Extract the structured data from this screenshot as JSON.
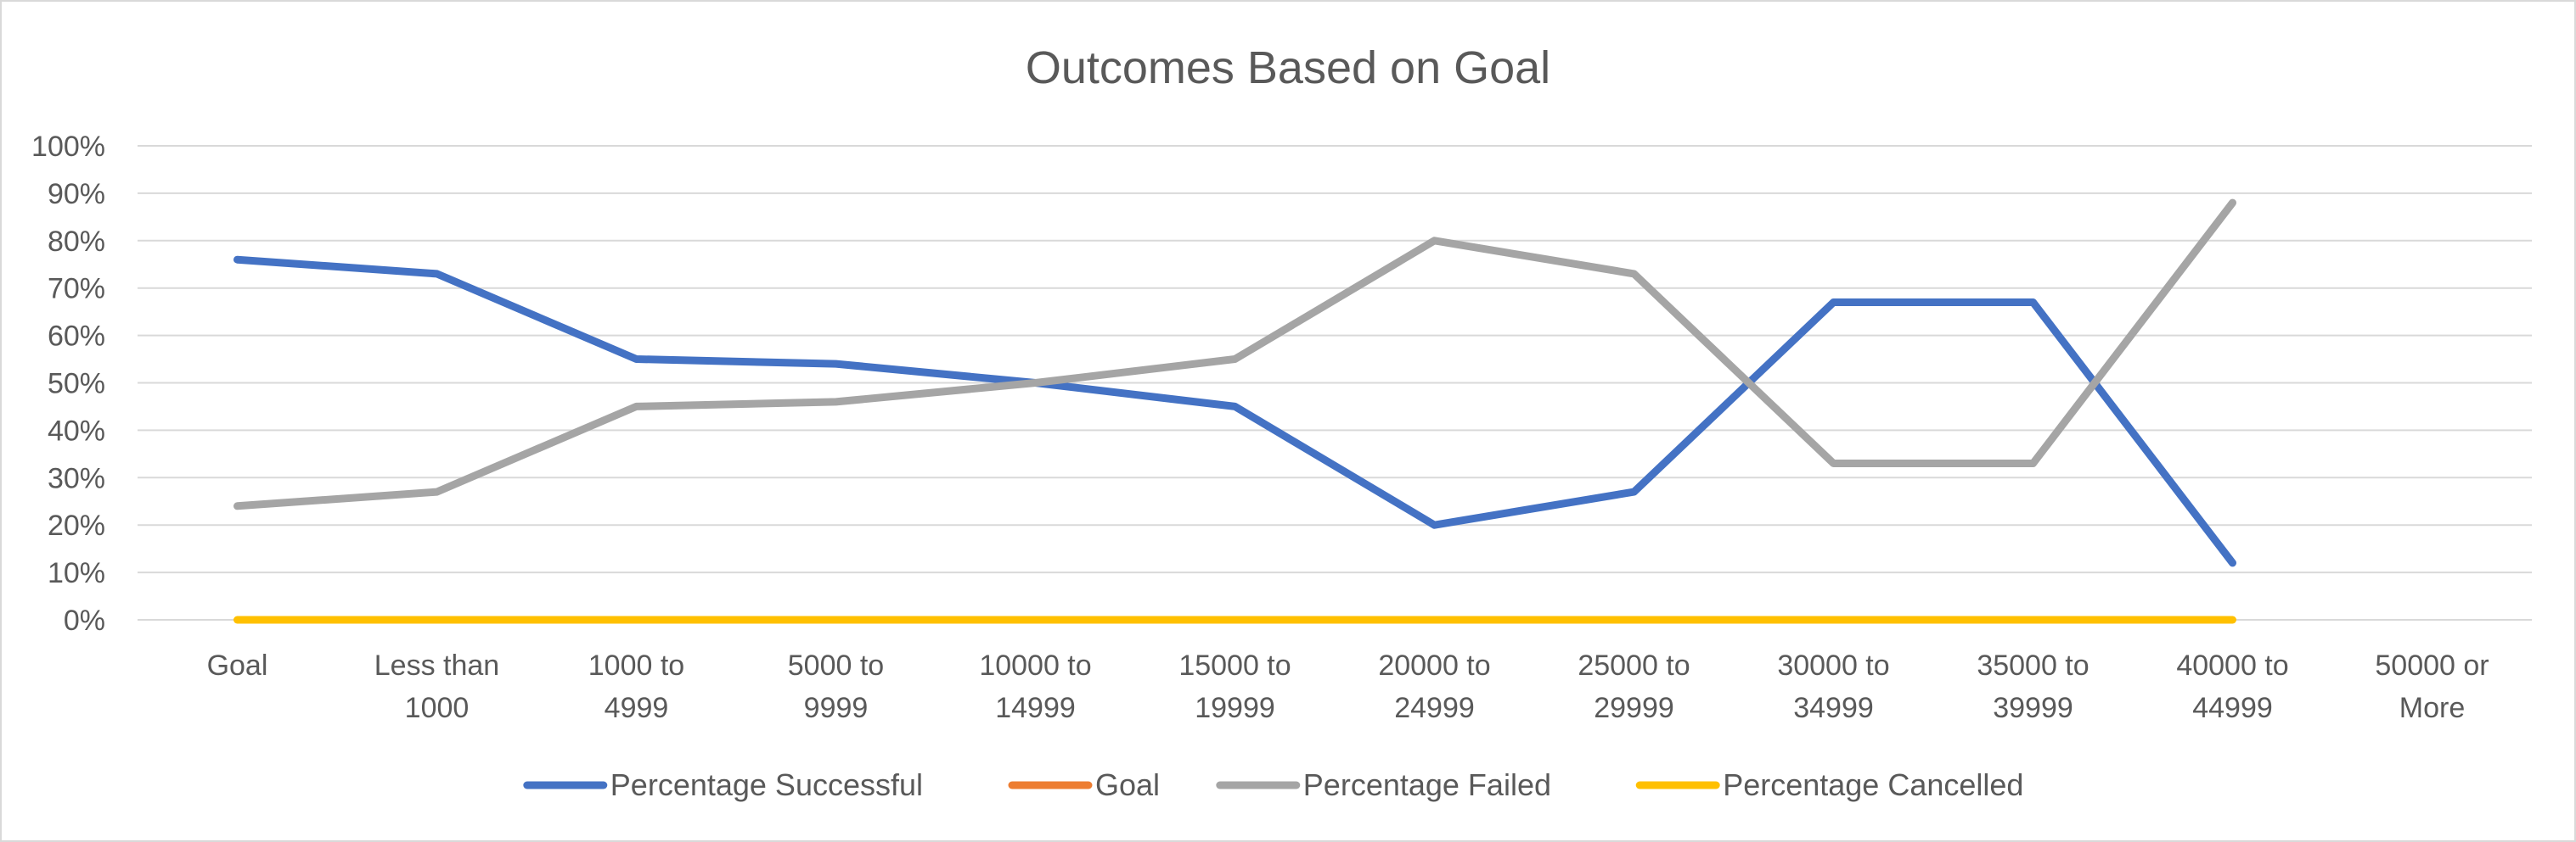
{
  "chart_data": {
    "type": "line",
    "title": "Outcomes Based on Goal",
    "categories": [
      [
        "Goal"
      ],
      [
        "Less than",
        "1000"
      ],
      [
        "1000 to",
        "4999"
      ],
      [
        "5000 to",
        "9999"
      ],
      [
        "10000 to",
        "14999"
      ],
      [
        "15000 to",
        "19999"
      ],
      [
        "20000 to",
        "24999"
      ],
      [
        "25000 to",
        "29999"
      ],
      [
        "30000 to",
        "34999"
      ],
      [
        "35000 to",
        "39999"
      ],
      [
        "40000 to",
        "44999"
      ],
      [
        "50000 or",
        "More"
      ]
    ],
    "y_ticks": [
      "0%",
      "10%",
      "20%",
      "30%",
      "40%",
      "50%",
      "60%",
      "70%",
      "80%",
      "90%",
      "100%"
    ],
    "ylim": [
      0,
      1
    ],
    "grid": true,
    "legend_position": "bottom",
    "series": [
      {
        "name": "Percentage Successful",
        "color": "#4472c4",
        "values": [
          0.76,
          0.73,
          0.55,
          0.54,
          0.5,
          0.45,
          0.2,
          0.27,
          0.67,
          0.67,
          0.12,
          null
        ]
      },
      {
        "name": "Goal",
        "color": "#ed7d31",
        "values": [
          null,
          null,
          null,
          null,
          null,
          null,
          null,
          null,
          null,
          null,
          null,
          null
        ]
      },
      {
        "name": "Percentage Failed",
        "color": "#a5a5a5",
        "values": [
          0.24,
          0.27,
          0.45,
          0.46,
          0.5,
          0.55,
          0.8,
          0.73,
          0.33,
          0.33,
          0.88,
          null
        ]
      },
      {
        "name": "Percentage Cancelled",
        "color": "#ffc000",
        "values": [
          0,
          0,
          0,
          0,
          0,
          0,
          0,
          0,
          0,
          0,
          0,
          null
        ]
      }
    ]
  }
}
